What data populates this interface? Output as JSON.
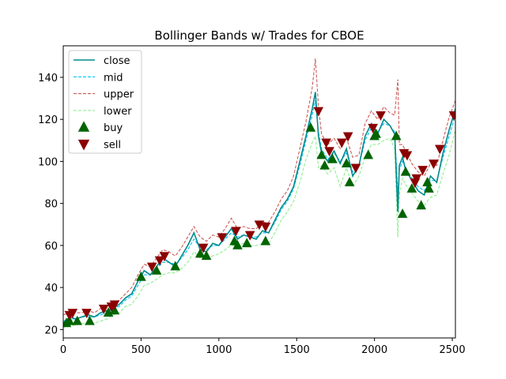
{
  "chart_data": {
    "type": "line",
    "title": "Bollinger Bands w/ Trades for CBOE",
    "xlabel": "",
    "ylabel": "",
    "xlim": [
      0,
      2520
    ],
    "ylim": [
      16,
      155
    ],
    "xticks": [
      0,
      500,
      1000,
      1500,
      2000,
      2500
    ],
    "yticks": [
      20,
      40,
      60,
      80,
      100,
      120,
      140
    ],
    "grid": false,
    "legend_position": "top-left",
    "colors": {
      "close": "#008b8b",
      "mid": "#00bfff",
      "upper": "#cd5c5c",
      "lower": "#90ee90",
      "buy": "#006400",
      "sell": "#8b0000"
    },
    "series": [
      {
        "name": "close",
        "style": "solid",
        "x": [
          0,
          40,
          80,
          120,
          160,
          200,
          240,
          280,
          320,
          360,
          400,
          440,
          480,
          520,
          560,
          600,
          640,
          680,
          720,
          760,
          800,
          840,
          880,
          920,
          960,
          1000,
          1040,
          1080,
          1120,
          1160,
          1200,
          1240,
          1280,
          1320,
          1360,
          1400,
          1440,
          1480,
          1520,
          1560,
          1600,
          1620,
          1640,
          1660,
          1700,
          1740,
          1780,
          1820,
          1860,
          1900,
          1940,
          1980,
          2020,
          2060,
          2100,
          2130,
          2150,
          2160,
          2180,
          2200,
          2240,
          2280,
          2320,
          2360,
          2400,
          2440,
          2480,
          2520
        ],
        "y": [
          23,
          26,
          25,
          26,
          27,
          26,
          28,
          29,
          30,
          32,
          35,
          37,
          43,
          48,
          46,
          50,
          54,
          52,
          50,
          55,
          60,
          66,
          58,
          57,
          61,
          60,
          64,
          68,
          63,
          65,
          64,
          63,
          67,
          66,
          72,
          78,
          82,
          88,
          100,
          112,
          125,
          133,
          112,
          104,
          100,
          105,
          99,
          106,
          93,
          98,
          112,
          118,
          113,
          120,
          117,
          113,
          76,
          98,
          102,
          96,
          91,
          86,
          84,
          93,
          90,
          104,
          115,
          125
        ]
      },
      {
        "name": "mid",
        "style": "dashed",
        "x": [
          0,
          40,
          80,
          120,
          160,
          200,
          240,
          280,
          320,
          360,
          400,
          440,
          480,
          520,
          560,
          600,
          640,
          680,
          720,
          760,
          800,
          840,
          880,
          920,
          960,
          1000,
          1040,
          1080,
          1120,
          1160,
          1200,
          1240,
          1280,
          1320,
          1360,
          1400,
          1440,
          1480,
          1520,
          1560,
          1600,
          1620,
          1640,
          1660,
          1700,
          1740,
          1780,
          1820,
          1860,
          1900,
          1940,
          1980,
          2020,
          2060,
          2100,
          2130,
          2150,
          2160,
          2180,
          2200,
          2240,
          2280,
          2320,
          2360,
          2400,
          2440,
          2480,
          2520
        ],
        "y": [
          24,
          25,
          25,
          26,
          26,
          26,
          27,
          28,
          30,
          31,
          34,
          36,
          41,
          46,
          46,
          49,
          52,
          52,
          51,
          54,
          58,
          63,
          59,
          58,
          60,
          60,
          63,
          66,
          64,
          65,
          64,
          64,
          66,
          66,
          71,
          77,
          81,
          87,
          98,
          110,
          122,
          129,
          114,
          106,
          101,
          104,
          100,
          104,
          95,
          98,
          110,
          116,
          114,
          118,
          117,
          114,
          85,
          96,
          100,
          97,
          92,
          88,
          86,
          91,
          91,
          102,
          112,
          122
        ]
      },
      {
        "name": "upper",
        "style": "dashed",
        "x": [
          0,
          40,
          80,
          120,
          160,
          200,
          240,
          280,
          320,
          360,
          400,
          440,
          480,
          520,
          560,
          600,
          640,
          680,
          720,
          760,
          800,
          840,
          880,
          920,
          960,
          1000,
          1040,
          1080,
          1120,
          1160,
          1200,
          1240,
          1280,
          1320,
          1360,
          1400,
          1440,
          1480,
          1520,
          1560,
          1600,
          1620,
          1640,
          1660,
          1700,
          1740,
          1780,
          1820,
          1860,
          1900,
          1940,
          1980,
          2020,
          2060,
          2100,
          2130,
          2150,
          2160,
          2180,
          2200,
          2240,
          2280,
          2320,
          2360,
          2400,
          2440,
          2480,
          2520
        ],
        "y": [
          27,
          28,
          28,
          28,
          29,
          28,
          30,
          31,
          33,
          34,
          37,
          40,
          46,
          51,
          50,
          54,
          58,
          57,
          55,
          59,
          64,
          69,
          64,
          62,
          65,
          64,
          68,
          73,
          68,
          69,
          68,
          68,
          71,
          71,
          76,
          82,
          86,
          93,
          106,
          119,
          135,
          149,
          126,
          113,
          108,
          111,
          106,
          111,
          102,
          103,
          118,
          124,
          120,
          126,
          123,
          122,
          139,
          108,
          108,
          105,
          99,
          95,
          93,
          99,
          98,
          110,
          121,
          129
        ]
      },
      {
        "name": "lower",
        "style": "dashed",
        "x": [
          0,
          40,
          80,
          120,
          160,
          200,
          240,
          280,
          320,
          360,
          400,
          440,
          480,
          520,
          560,
          600,
          640,
          680,
          720,
          760,
          800,
          840,
          880,
          920,
          960,
          1000,
          1040,
          1080,
          1120,
          1160,
          1200,
          1240,
          1280,
          1320,
          1360,
          1400,
          1440,
          1480,
          1520,
          1560,
          1600,
          1620,
          1640,
          1660,
          1700,
          1740,
          1780,
          1820,
          1860,
          1900,
          1940,
          1980,
          2020,
          2060,
          2100,
          2130,
          2150,
          2160,
          2180,
          2200,
          2240,
          2280,
          2320,
          2360,
          2400,
          2440,
          2480,
          2520
        ],
        "y": [
          21,
          22,
          22,
          23,
          23,
          23,
          24,
          25,
          27,
          28,
          31,
          32,
          36,
          41,
          42,
          44,
          46,
          47,
          47,
          49,
          52,
          57,
          54,
          54,
          55,
          56,
          58,
          60,
          60,
          61,
          60,
          60,
          61,
          61,
          66,
          72,
          76,
          81,
          90,
          101,
          109,
          112,
          97,
          98,
          94,
          97,
          88,
          97,
          88,
          93,
          102,
          108,
          108,
          110,
          111,
          106,
          64,
          84,
          92,
          89,
          85,
          81,
          79,
          83,
          84,
          94,
          103,
          115
        ]
      }
    ],
    "trades": {
      "buy": {
        "name": "buy",
        "x": [
          20,
          40,
          90,
          170,
          290,
          330,
          500,
          600,
          720,
          880,
          920,
          1100,
          1120,
          1180,
          1300,
          1590,
          1660,
          1680,
          1730,
          1820,
          1840,
          1960,
          2000,
          2010,
          2140,
          2180,
          2200,
          2240,
          2300,
          2340,
          2350
        ],
        "y": [
          23,
          24,
          24,
          24,
          28,
          29,
          45,
          48,
          50,
          56,
          55,
          62,
          60,
          61,
          62,
          116,
          103,
          98,
          101,
          99,
          90,
          103,
          112,
          113,
          112,
          75,
          95,
          87,
          79,
          90,
          87
        ]
      },
      "sell": {
        "name": "sell",
        "x": [
          40,
          60,
          150,
          260,
          310,
          330,
          570,
          620,
          650,
          900,
          1020,
          1110,
          1200,
          1260,
          1300,
          1640,
          1690,
          1710,
          1790,
          1830,
          1880,
          1990,
          2040,
          2190,
          2210,
          2260,
          2270,
          2310,
          2380,
          2420,
          2510
        ],
        "y": [
          27,
          28,
          28,
          30,
          31,
          32,
          50,
          53,
          55,
          59,
          64,
          67,
          65,
          70,
          69,
          124,
          109,
          105,
          109,
          112,
          97,
          116,
          122,
          104,
          103,
          90,
          92,
          96,
          99,
          106,
          122
        ]
      }
    },
    "legend": [
      "close",
      "mid",
      "upper",
      "lower",
      "buy",
      "sell"
    ]
  }
}
